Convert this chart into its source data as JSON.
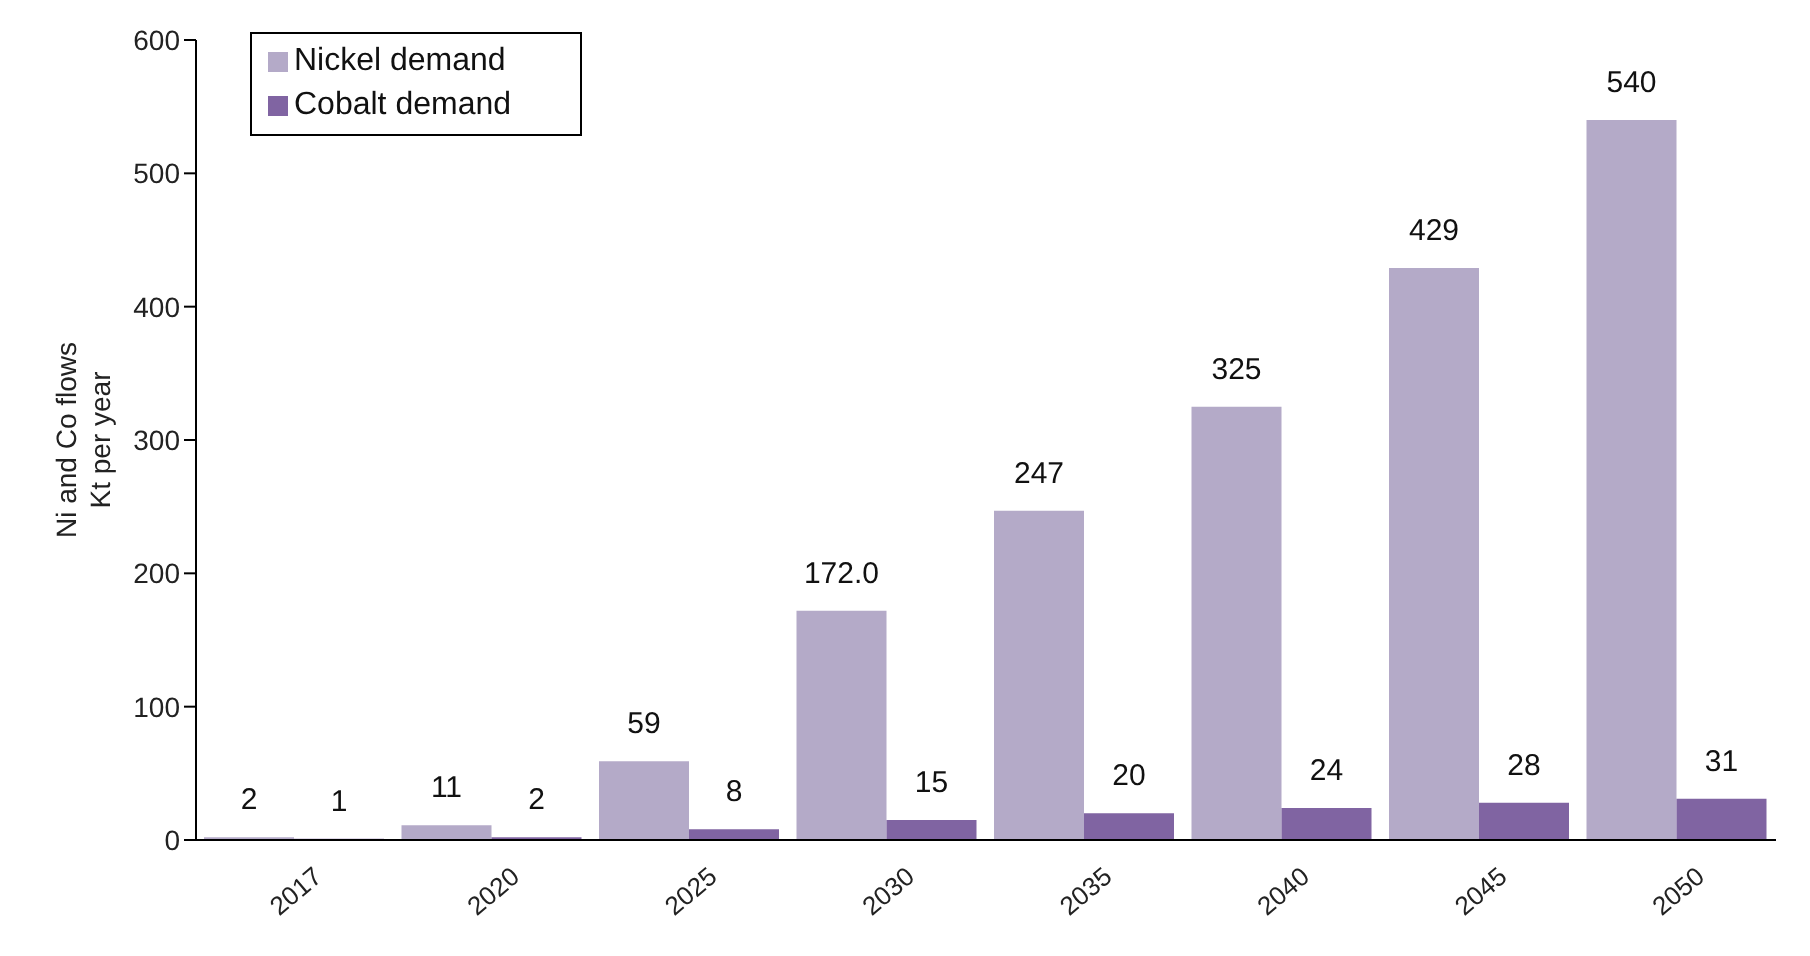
{
  "chart_data": {
    "type": "bar",
    "ylabel": "Ni and Co flows\nKt per year",
    "categories": [
      "2017",
      "2020",
      "2025",
      "2030",
      "2035",
      "2040",
      "2045",
      "2050"
    ],
    "series": [
      {
        "name": "Nickel demand",
        "color": "#b4aac8",
        "values": [
          2,
          11,
          59,
          172,
          247,
          325,
          429,
          540
        ],
        "value_labels": [
          "2",
          "11",
          "59",
          "172.0",
          "247",
          "325",
          "429",
          "540"
        ]
      },
      {
        "name": "Cobalt demand",
        "color": "#8064a2",
        "values": [
          1,
          2,
          8,
          15,
          20,
          24,
          28,
          31
        ],
        "value_labels": [
          "1",
          "2",
          "8",
          "15",
          "20",
          "24",
          "28",
          "31"
        ]
      }
    ],
    "ylim": [
      0,
      600
    ],
    "yticks": [
      0,
      100,
      200,
      300,
      400,
      500,
      600
    ],
    "grid": false,
    "legend": "top left"
  }
}
